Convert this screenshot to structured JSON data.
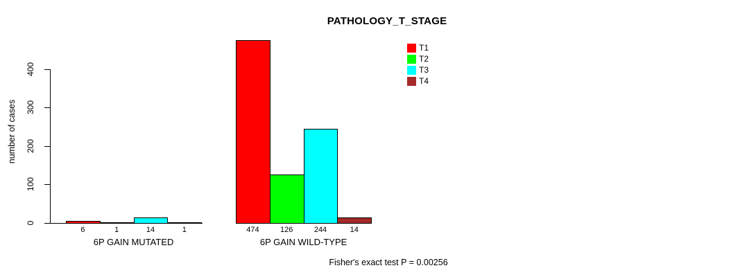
{
  "chart_data": {
    "type": "bar",
    "title": "PATHOLOGY_T_STAGE",
    "ylabel": "number of cases",
    "xlabel": "",
    "ylim": [
      0,
      400
    ],
    "yticks": [
      0,
      100,
      200,
      300,
      400
    ],
    "categories": [
      "6P GAIN MUTATED",
      "6P GAIN WILD-TYPE"
    ],
    "series": [
      {
        "name": "T1",
        "color": "#ff0000",
        "values": [
          6,
          474
        ]
      },
      {
        "name": "T2",
        "color": "#00ff00",
        "values": [
          1,
          126
        ]
      },
      {
        "name": "T3",
        "color": "#00ffff",
        "values": [
          14,
          244
        ]
      },
      {
        "name": "T4",
        "color": "#a52a2a",
        "values": [
          1,
          14
        ]
      }
    ],
    "bar_value_labels": [
      [
        6,
        1,
        14,
        1
      ],
      [
        474,
        126,
        244,
        14
      ]
    ],
    "legend_position": "top-right",
    "grid": false,
    "background": "#ffffff",
    "axis_color": "#000000",
    "annotation": "Fisher's exact test P = 0.00256"
  }
}
